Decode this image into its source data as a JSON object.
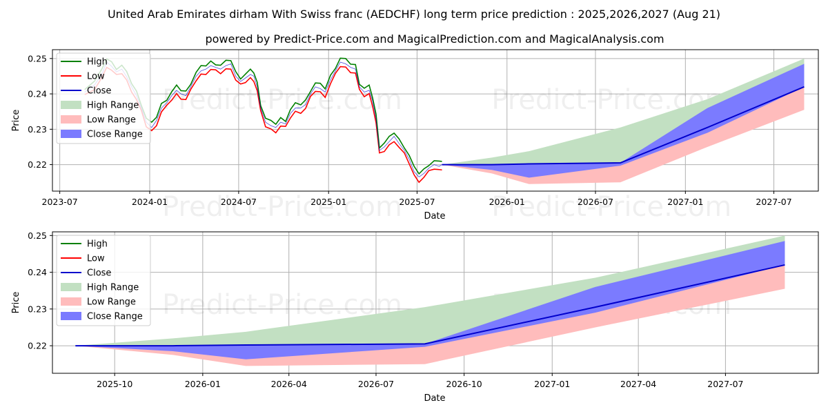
{
  "title_line1": "United Arab Emirates dirham With Swiss franc (AEDCHF) long term price prediction : 2025,2026,2027 (Aug 21)",
  "title_line2": "powered by Predict-Price.com and MagicalPrediction.com and MagicalAnalysis.com",
  "watermark": "Predict-Price.com",
  "colors": {
    "high": "#008000",
    "low": "#ff0000",
    "close": "#0000cc",
    "high_range": "#c2e0c2",
    "low_range": "#ffbcbc",
    "close_range": "#7b7bff"
  },
  "chart_data": [
    {
      "type": "line",
      "panel": "full history and prediction",
      "xlabel": "Date",
      "ylabel": "Price",
      "xlim": [
        "2023-06-16",
        "2027-09-30"
      ],
      "ylim": [
        0.2125,
        0.2525
      ],
      "x_ticks": [
        "2023-07-01",
        "2024-01-01",
        "2024-07-01",
        "2025-01-01",
        "2025-07-01",
        "2026-01-01",
        "2026-07-01",
        "2027-01-01",
        "2027-07-01"
      ],
      "x_tick_labels": [
        "2023-07",
        "2024-01",
        "2024-07",
        "2025-01",
        "2025-07",
        "2026-01",
        "2026-07",
        "2027-01",
        "2027-07"
      ],
      "y_ticks": [
        0.22,
        0.23,
        0.24,
        0.25
      ],
      "y_tick_labels": [
        "0.22",
        "0.23",
        "0.24",
        "0.25"
      ],
      "grid": true,
      "legend_position": "top-left",
      "legend": [
        "High",
        "Low",
        "Close",
        "High Range",
        "Low Range",
        "Close Range"
      ],
      "history_close": {
        "x": [
          "2023-08-21",
          "2023-09-10",
          "2023-09-25",
          "2023-10-05",
          "2023-10-15",
          "2023-10-25",
          "2023-11-05",
          "2023-11-15",
          "2023-11-25",
          "2023-12-05",
          "2023-12-15",
          "2023-12-25",
          "2024-01-05",
          "2024-01-15",
          "2024-01-25",
          "2024-02-05",
          "2024-02-15",
          "2024-02-25",
          "2024-03-05",
          "2024-03-15",
          "2024-03-25",
          "2024-04-05",
          "2024-04-15",
          "2024-04-25",
          "2024-05-05",
          "2024-05-15",
          "2024-05-25",
          "2024-06-05",
          "2024-06-15",
          "2024-06-25",
          "2024-07-05",
          "2024-07-15",
          "2024-07-25",
          "2024-08-01",
          "2024-08-08",
          "2024-08-15",
          "2024-08-25",
          "2024-09-05",
          "2024-09-15",
          "2024-09-25",
          "2024-10-05",
          "2024-10-15",
          "2024-10-25",
          "2024-11-05",
          "2024-11-15",
          "2024-11-25",
          "2024-12-05",
          "2024-12-15",
          "2024-12-25",
          "2025-01-05",
          "2025-01-15",
          "2025-01-25",
          "2025-02-05",
          "2025-02-15",
          "2025-02-25",
          "2025-03-05",
          "2025-03-15",
          "2025-03-25",
          "2025-04-01",
          "2025-04-08",
          "2025-04-15",
          "2025-04-25",
          "2025-05-05",
          "2025-05-15",
          "2025-05-25",
          "2025-06-05",
          "2025-06-15",
          "2025-06-25",
          "2025-07-05",
          "2025-07-15",
          "2025-07-25",
          "2025-08-05",
          "2025-08-15",
          "2025-08-21"
        ],
        "y": [
          0.2405,
          0.2425,
          0.2455,
          0.249,
          0.2478,
          0.2462,
          0.247,
          0.2448,
          0.242,
          0.2395,
          0.236,
          0.232,
          0.2305,
          0.2325,
          0.236,
          0.2375,
          0.2395,
          0.241,
          0.24,
          0.2395,
          0.242,
          0.245,
          0.2465,
          0.247,
          0.248,
          0.2475,
          0.247,
          0.248,
          0.2485,
          0.245,
          0.2435,
          0.2445,
          0.2455,
          0.245,
          0.242,
          0.236,
          0.232,
          0.231,
          0.2305,
          0.232,
          0.2315,
          0.2345,
          0.236,
          0.236,
          0.237,
          0.24,
          0.242,
          0.2415,
          0.2405,
          0.244,
          0.2465,
          0.249,
          0.2485,
          0.2475,
          0.247,
          0.242,
          0.2405,
          0.241,
          0.238,
          0.233,
          0.224,
          0.225,
          0.2265,
          0.228,
          0.226,
          0.224,
          0.2215,
          0.218,
          0.2165,
          0.2175,
          0.219,
          0.22,
          0.2195,
          0.22
        ]
      },
      "forecast": {
        "x": [
          "2025-08-21",
          "2025-12-01",
          "2026-02-15",
          "2026-08-21",
          "2027-02-15",
          "2027-09-01"
        ],
        "close": [
          0.22,
          0.22,
          0.2202,
          0.2205,
          0.2305,
          0.242
        ],
        "high_range": {
          "upper": [
            0.22,
            0.222,
            0.2238,
            0.2305,
            0.2385,
            0.25
          ],
          "lower": [
            0.22,
            0.2196,
            0.2192,
            0.2195,
            0.229,
            0.241
          ]
        },
        "low_range": {
          "upper": [
            0.22,
            0.2196,
            0.218,
            0.2198,
            0.23,
            0.242
          ],
          "lower": [
            0.22,
            0.2175,
            0.2145,
            0.215,
            0.225,
            0.2355
          ]
        },
        "close_range": {
          "upper": [
            0.22,
            0.22,
            0.2202,
            0.2205,
            0.236,
            0.2485
          ],
          "lower": [
            0.22,
            0.2185,
            0.2163,
            0.2197,
            0.229,
            0.242
          ]
        }
      }
    },
    {
      "type": "line",
      "panel": "prediction detail",
      "xlabel": "Date",
      "ylabel": "Price",
      "xlim": [
        "2025-07-28",
        "2027-10-06"
      ],
      "ylim": [
        0.2125,
        0.251
      ],
      "x_ticks": [
        "2025-10-01",
        "2026-01-01",
        "2026-04-01",
        "2026-07-01",
        "2026-10-01",
        "2027-01-01",
        "2027-04-01",
        "2027-07-01"
      ],
      "x_tick_labels": [
        "2025-10",
        "2026-01",
        "2026-04",
        "2026-07",
        "2026-10",
        "2027-01",
        "2027-04",
        "2027-07"
      ],
      "y_ticks": [
        0.22,
        0.23,
        0.24,
        0.25
      ],
      "y_tick_labels": [
        "0.22",
        "0.23",
        "0.24",
        "0.25"
      ],
      "grid": true,
      "legend_position": "top-left",
      "legend": [
        "High",
        "Low",
        "Close",
        "High Range",
        "Low Range",
        "Close Range"
      ],
      "forecast": {
        "x": [
          "2025-08-21",
          "2025-12-01",
          "2026-02-15",
          "2026-08-21",
          "2027-02-15",
          "2027-09-01"
        ],
        "close": [
          0.22,
          0.22,
          0.2202,
          0.2205,
          0.2305,
          0.242
        ],
        "high_range": {
          "upper": [
            0.22,
            0.222,
            0.2238,
            0.2305,
            0.2385,
            0.25
          ],
          "lower": [
            0.22,
            0.2196,
            0.2192,
            0.2195,
            0.229,
            0.241
          ]
        },
        "low_range": {
          "upper": [
            0.22,
            0.2196,
            0.218,
            0.2198,
            0.23,
            0.242
          ],
          "lower": [
            0.22,
            0.2175,
            0.2145,
            0.215,
            0.225,
            0.2355
          ]
        },
        "close_range": {
          "upper": [
            0.22,
            0.22,
            0.2202,
            0.2205,
            0.236,
            0.2485
          ],
          "lower": [
            0.22,
            0.2185,
            0.2163,
            0.2197,
            0.229,
            0.242
          ]
        }
      }
    }
  ]
}
